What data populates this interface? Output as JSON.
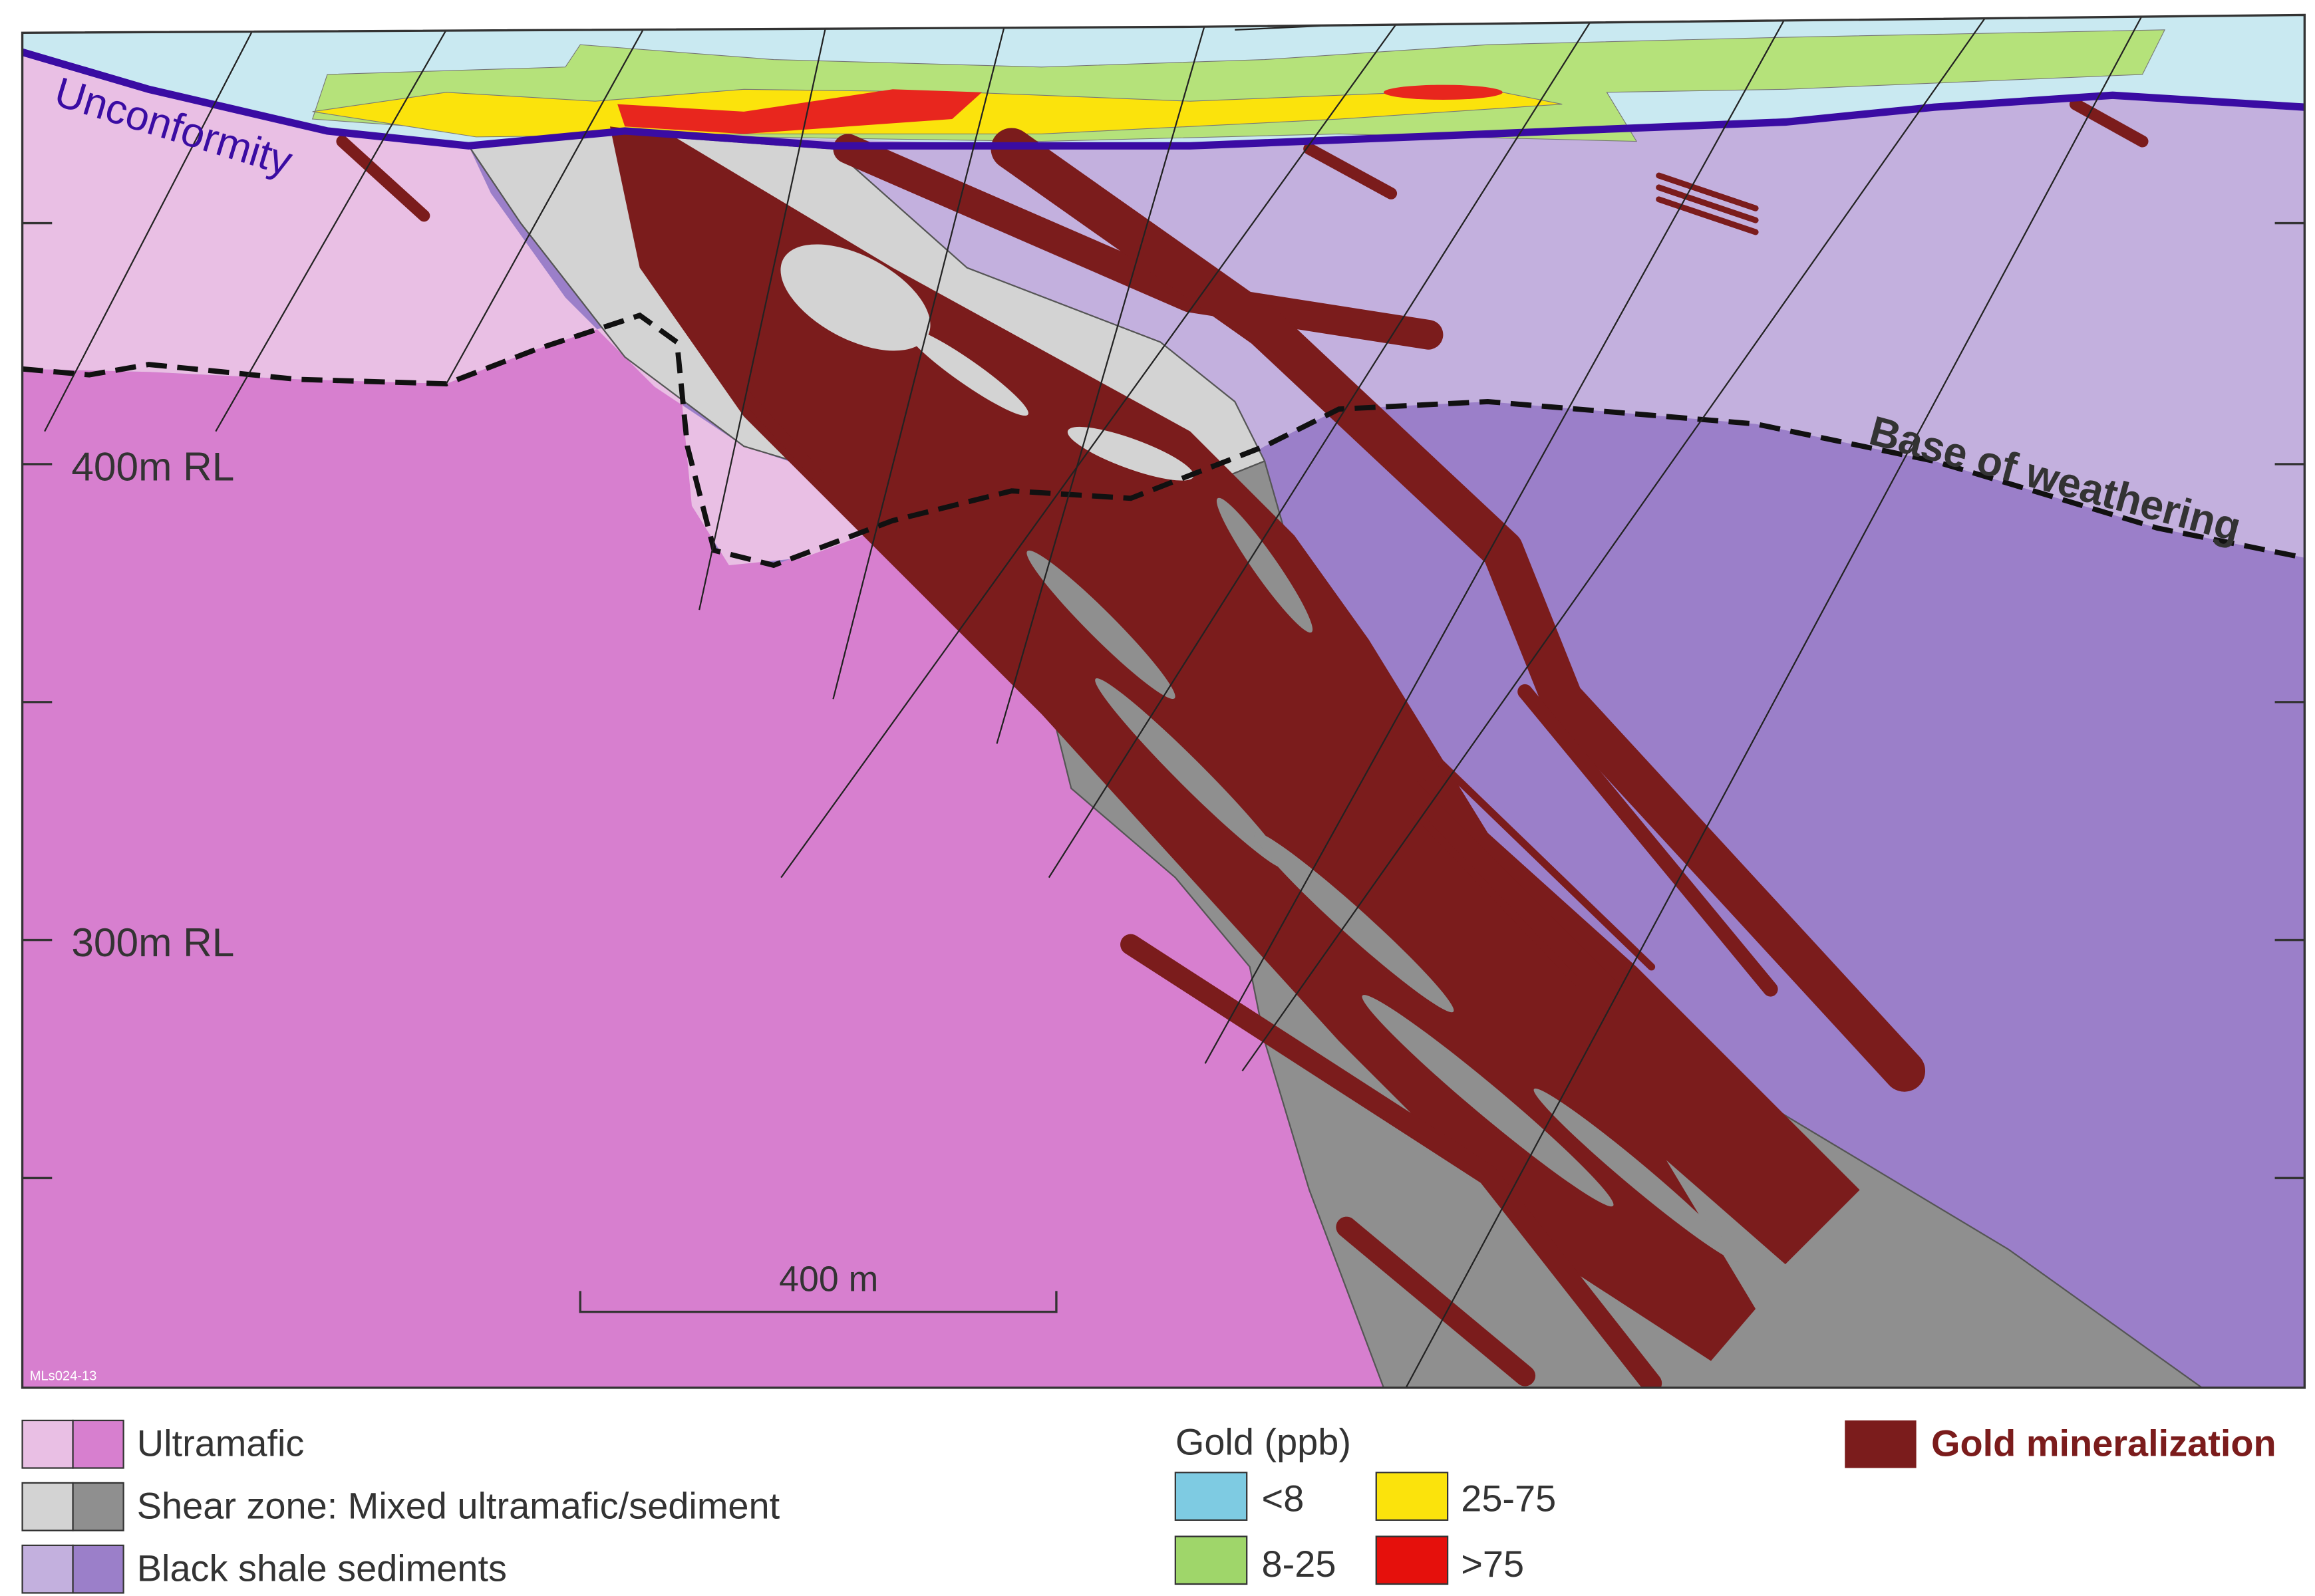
{
  "labels": {
    "unconformity": "Unconformity",
    "base_of_weathering": "Base of weathering",
    "rl_400": "400m RL",
    "rl_300": "300m RL",
    "scale_bar": "400 m",
    "figure_id": "MLs024-13"
  },
  "legend": {
    "rock_units": [
      "Ultramafic",
      "Shear zone: Mixed ultramafic/sediment",
      "Black shale sediments"
    ],
    "gold_title": "Gold (ppb)",
    "gold_classes": [
      "<8",
      "8-25",
      "25-75",
      ">75"
    ],
    "mineralization": "Gold mineralization"
  }
}
